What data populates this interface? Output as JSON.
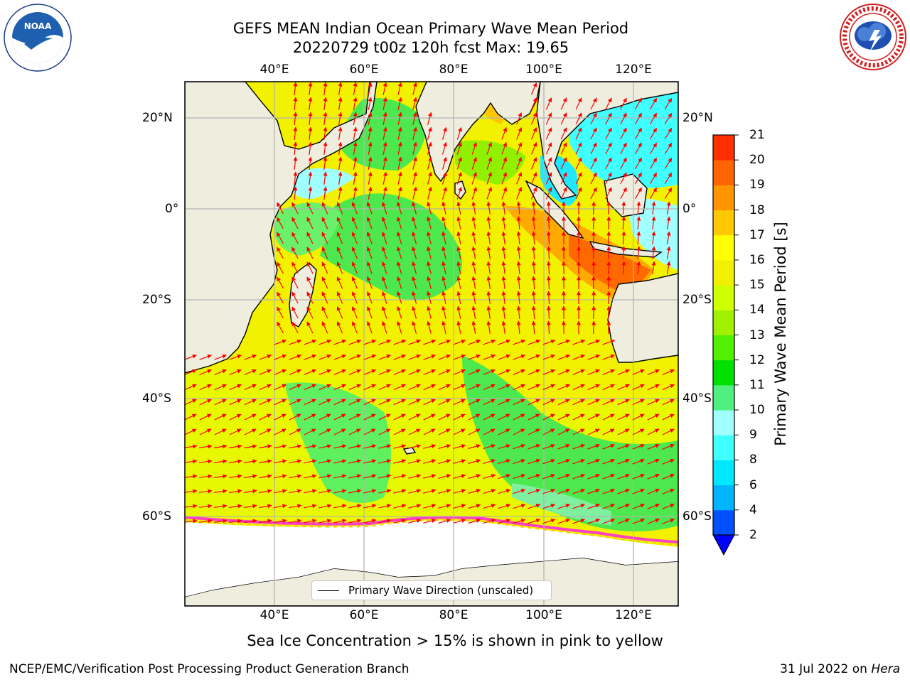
{
  "title": {
    "line1": "GEFS MEAN Indian Ocean Primary Wave Mean Period",
    "line2": "20220729 t00z 120h fcst   Max: 19.65"
  },
  "axes": {
    "lon_labels": [
      "40°E",
      "60°E",
      "80°E",
      "100°E",
      "120°E"
    ],
    "lat_labels": [
      "20°N",
      "0°",
      "20°S",
      "40°S",
      "60°S"
    ]
  },
  "legend": {
    "label": "Primary Wave Direction (unscaled)"
  },
  "colorbar": {
    "label": "Primary Wave Mean Period [s]",
    "ticks": [
      "2",
      "4",
      "6",
      "8",
      "9",
      "10",
      "11",
      "12",
      "13",
      "14",
      "15",
      "16",
      "17",
      "18",
      "19",
      "20",
      "21"
    ],
    "colors": [
      "#0050ff",
      "#00b4ff",
      "#00e8ff",
      "#40ffff",
      "#a0ffff",
      "#50f080",
      "#00e000",
      "#50f000",
      "#a0f000",
      "#d0ff00",
      "#f0f000",
      "#ffff00",
      "#ffc800",
      "#ff9600",
      "#ff6400",
      "#ff3000",
      "#ff0000"
    ],
    "extend_color": "#0000ff"
  },
  "caption": "Sea Ice Concentration > 15% is shown in pink to yellow",
  "footer": {
    "left": "NCEP/EMC/Verification Post Processing Product Generation Branch",
    "right_date": "31 Jul 2022 on ",
    "right_machine": "Hera"
  },
  "colors": {
    "land": "#efedde",
    "arrow": "#ff0000",
    "grid": "#b4b4b4"
  },
  "icons": {
    "left_logo": "noaa-logo",
    "right_logo": "nws-logo"
  }
}
